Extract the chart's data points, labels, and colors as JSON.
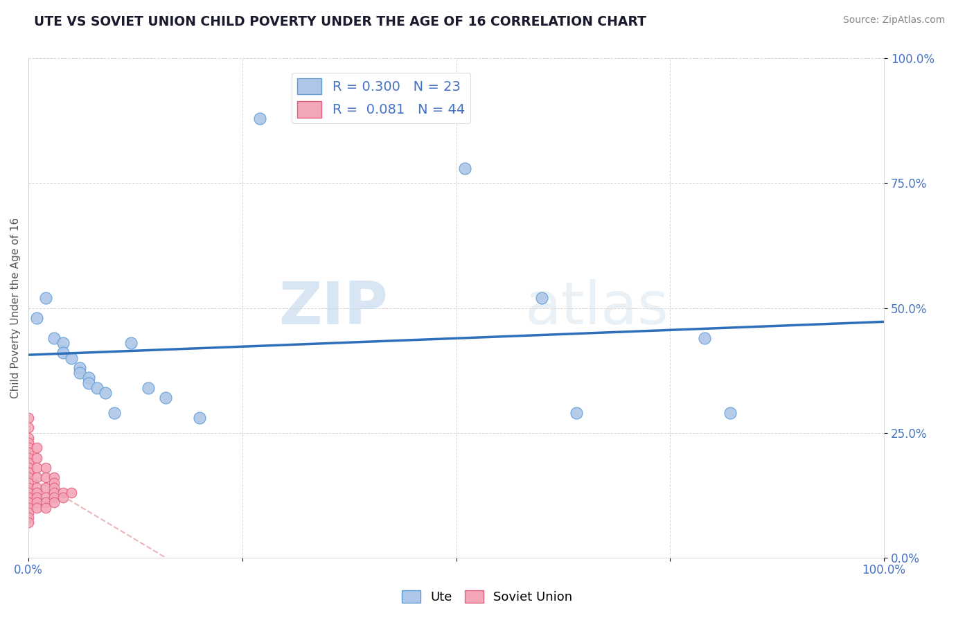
{
  "title": "UTE VS SOVIET UNION CHILD POVERTY UNDER THE AGE OF 16 CORRELATION CHART",
  "source": "Source: ZipAtlas.com",
  "ylabel": "Child Poverty Under the Age of 16",
  "xlim": [
    0.0,
    1.0
  ],
  "ylim": [
    0.0,
    1.0
  ],
  "ytick_positions": [
    0.0,
    0.25,
    0.5,
    0.75,
    1.0
  ],
  "ytick_labels": [
    "0.0%",
    "25.0%",
    "50.0%",
    "75.0%",
    "100.0%"
  ],
  "xtick_positions": [
    0.0,
    0.25,
    0.5,
    0.75,
    1.0
  ],
  "ute_color": "#aec6e8",
  "ute_edge_color": "#5b9bd5",
  "soviet_color": "#f4a7b9",
  "soviet_edge_color": "#e05c7a",
  "trend_ute_color": "#2e6fbb",
  "trend_soviet_color": "#e8a0a8",
  "R_ute": 0.3,
  "N_ute": 23,
  "R_soviet": 0.081,
  "N_soviet": 44,
  "watermark_zip": "ZIP",
  "watermark_atlas": "atlas",
  "ute_points": [
    [
      0.27,
      0.88
    ],
    [
      0.02,
      0.52
    ],
    [
      0.01,
      0.48
    ],
    [
      0.03,
      0.44
    ],
    [
      0.04,
      0.43
    ],
    [
      0.04,
      0.41
    ],
    [
      0.05,
      0.4
    ],
    [
      0.06,
      0.38
    ],
    [
      0.06,
      0.37
    ],
    [
      0.07,
      0.36
    ],
    [
      0.07,
      0.35
    ],
    [
      0.08,
      0.34
    ],
    [
      0.09,
      0.33
    ],
    [
      0.1,
      0.29
    ],
    [
      0.12,
      0.43
    ],
    [
      0.14,
      0.34
    ],
    [
      0.16,
      0.32
    ],
    [
      0.2,
      0.28
    ],
    [
      0.51,
      0.78
    ],
    [
      0.6,
      0.52
    ],
    [
      0.64,
      0.29
    ],
    [
      0.79,
      0.44
    ],
    [
      0.82,
      0.29
    ]
  ],
  "soviet_points": [
    [
      0.0,
      0.28
    ],
    [
      0.0,
      0.26
    ],
    [
      0.0,
      0.24
    ],
    [
      0.0,
      0.23
    ],
    [
      0.0,
      0.22
    ],
    [
      0.0,
      0.21
    ],
    [
      0.0,
      0.2
    ],
    [
      0.0,
      0.19
    ],
    [
      0.0,
      0.18
    ],
    [
      0.0,
      0.17
    ],
    [
      0.0,
      0.16
    ],
    [
      0.0,
      0.15
    ],
    [
      0.0,
      0.14
    ],
    [
      0.0,
      0.13
    ],
    [
      0.0,
      0.12
    ],
    [
      0.0,
      0.11
    ],
    [
      0.0,
      0.1
    ],
    [
      0.0,
      0.09
    ],
    [
      0.0,
      0.08
    ],
    [
      0.0,
      0.07
    ],
    [
      0.01,
      0.22
    ],
    [
      0.01,
      0.2
    ],
    [
      0.01,
      0.18
    ],
    [
      0.01,
      0.16
    ],
    [
      0.01,
      0.14
    ],
    [
      0.01,
      0.13
    ],
    [
      0.01,
      0.12
    ],
    [
      0.01,
      0.11
    ],
    [
      0.01,
      0.1
    ],
    [
      0.02,
      0.18
    ],
    [
      0.02,
      0.16
    ],
    [
      0.02,
      0.14
    ],
    [
      0.02,
      0.12
    ],
    [
      0.02,
      0.11
    ],
    [
      0.02,
      0.1
    ],
    [
      0.03,
      0.16
    ],
    [
      0.03,
      0.15
    ],
    [
      0.03,
      0.14
    ],
    [
      0.03,
      0.13
    ],
    [
      0.03,
      0.12
    ],
    [
      0.03,
      0.11
    ],
    [
      0.04,
      0.13
    ],
    [
      0.04,
      0.12
    ],
    [
      0.05,
      0.13
    ]
  ]
}
